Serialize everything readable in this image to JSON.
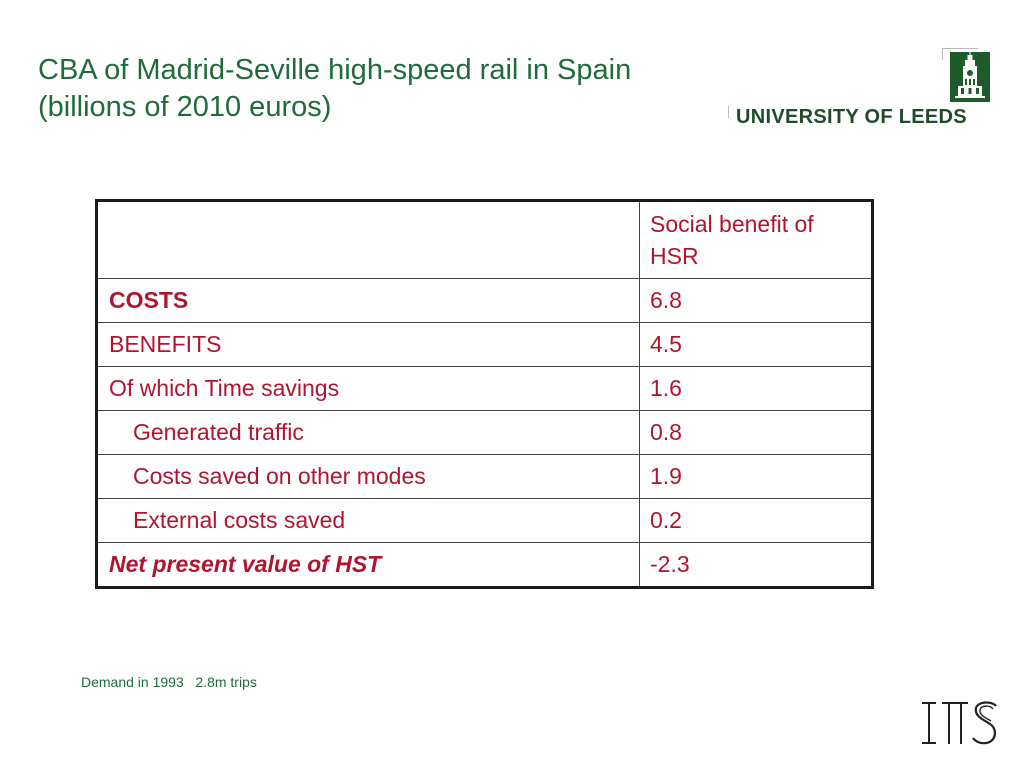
{
  "slide": {
    "title_line1": "CBA of Madrid-Seville high-speed rail in Spain",
    "title_line2": "(billions of 2010 euros)"
  },
  "logo": {
    "university_name": "UNIVERSITY OF LEEDS"
  },
  "table": {
    "header": [
      "",
      "Social benefit of HSR"
    ],
    "rows": [
      {
        "label": "COSTS",
        "value": "6.8"
      },
      {
        "label": "BENEFITS",
        "value": "4.5"
      },
      {
        "label": "Of which Time savings",
        "value": "1.6"
      },
      {
        "label": "Generated traffic",
        "value": "0.8"
      },
      {
        "label": "Costs saved on other modes",
        "value": "1.9"
      },
      {
        "label": "External costs saved",
        "value": "0.2"
      },
      {
        "label": "Net present value of HST",
        "value": "-2.3"
      }
    ]
  },
  "footnote": "Demand in 1993   2.8m trips",
  "its_logo_text": "ITS",
  "colors": {
    "title": "#1f6b3a",
    "table_text": "#b0152f",
    "leeds_green": "#1d5c2a"
  }
}
